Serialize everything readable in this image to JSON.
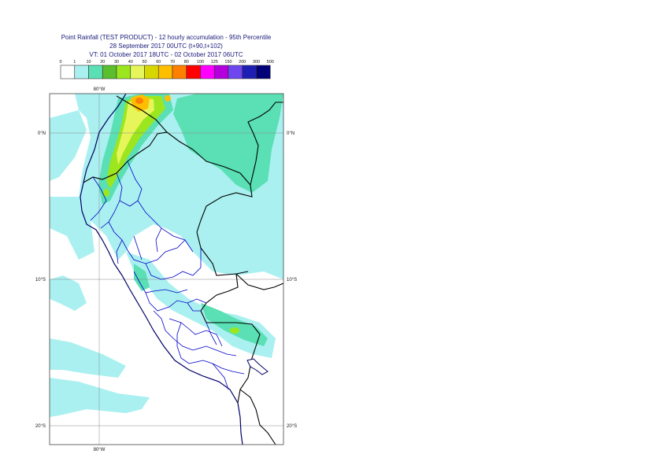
{
  "title": {
    "line1": "Point Rainfall (TEST PRODUCT) - 12 hourly accumulation - 95th Percentile",
    "line2": "28 September 2017 00UTC (t+90,t+102)",
    "line3": "VT: 01 October 2017 18UTC - 02 October 2017 06UTC"
  },
  "legend": {
    "thresholds": [
      "0",
      "1",
      "10",
      "20",
      "30",
      "40",
      "50",
      "60",
      "70",
      "80",
      "100",
      "125",
      "150",
      "200",
      "300",
      "500"
    ],
    "colors": [
      "#ffffff",
      "#aaf0f0",
      "#5ae0b4",
      "#5abe2d",
      "#9be61e",
      "#e6f55a",
      "#d7d700",
      "#ffbe00",
      "#ff7f00",
      "#ff0000",
      "#ff00ff",
      "#b400dc",
      "#6e46f0",
      "#1e1eb4",
      "#000078"
    ]
  },
  "map": {
    "lon_labels": [
      "80°W",
      "80°W"
    ],
    "lat_labels": [
      "0°N",
      "10°S",
      "20°S"
    ],
    "lat_labels_right": [
      "0°N",
      "10°S",
      "20°S"
    ]
  }
}
